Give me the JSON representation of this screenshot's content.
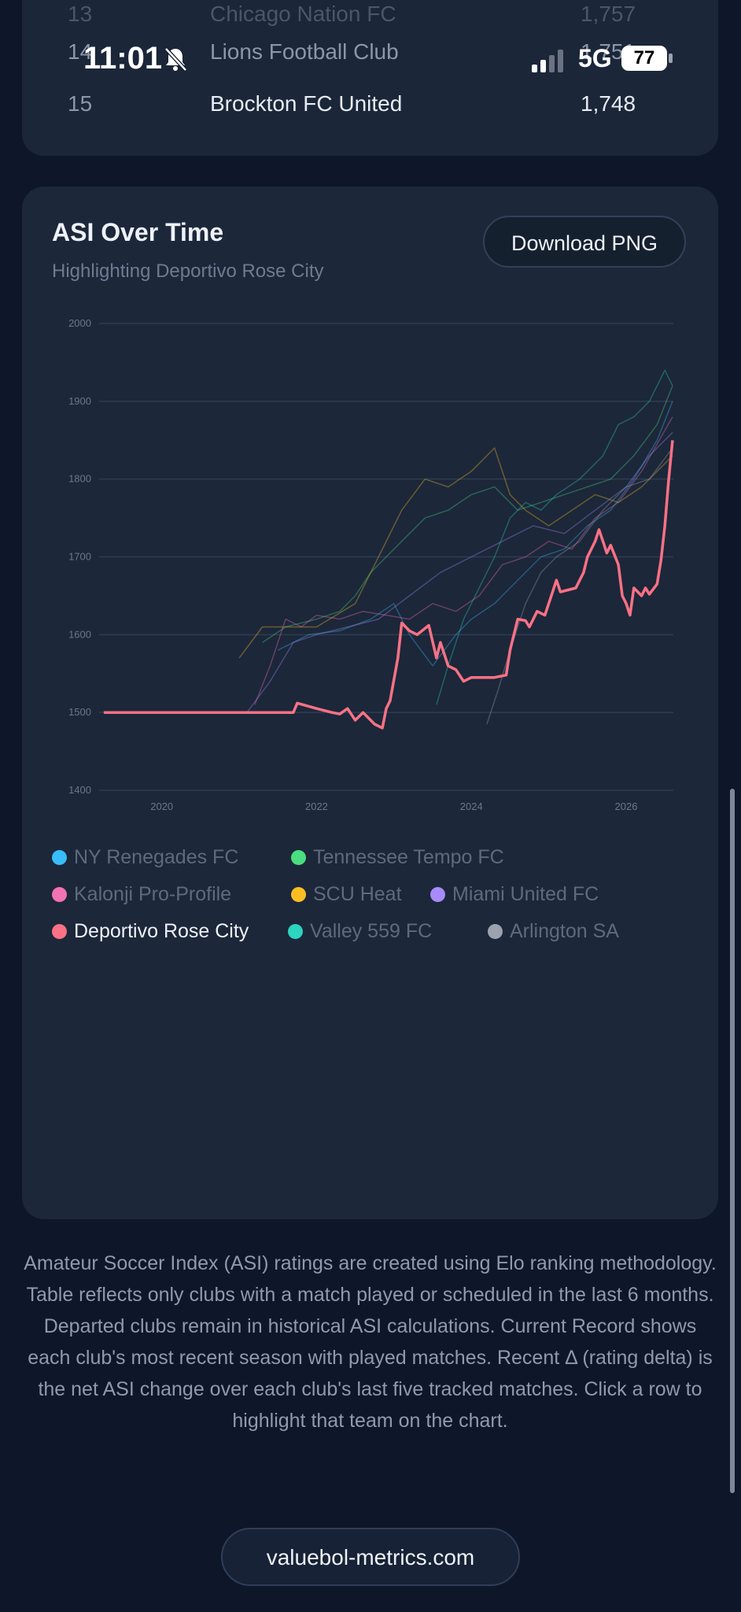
{
  "table": {
    "rows": [
      {
        "rank": "13",
        "club": "Chicago Nation FC",
        "asi": "1,757"
      },
      {
        "rank": "14",
        "club": "Lions Football Club",
        "asi": "1,751"
      },
      {
        "rank": "15",
        "club": "Brockton FC United",
        "asi": "1,748"
      }
    ]
  },
  "status_bar": {
    "time": "11:01",
    "network": "5G",
    "battery": "77"
  },
  "chart_card": {
    "title": "ASI Over Time",
    "subtitle": "Highlighting Deportivo Rose City",
    "download_label": "Download PNG"
  },
  "legend": [
    {
      "name": "NY Renegades FC",
      "color": "#38bdf8"
    },
    {
      "name": "Tennessee Tempo FC",
      "color": "#4ade80"
    },
    {
      "name": "Kalonji Pro-Profile",
      "color": "#f472b6"
    },
    {
      "name": "SCU Heat",
      "color": "#fbbf24"
    },
    {
      "name": "Miami United FC",
      "color": "#a78bfa"
    },
    {
      "name": "Deportivo Rose City",
      "color": "#fb7185"
    },
    {
      "name": "Valley 559 FC",
      "color": "#2dd4bf"
    },
    {
      "name": "Arlington SA",
      "color": "#9ca3af"
    }
  ],
  "chart_data": {
    "type": "line",
    "title": "ASI Over Time",
    "subtitle": "Highlighting Deportivo Rose City",
    "xlabel": "",
    "ylabel": "",
    "x_ticks": [
      "2020",
      "2022",
      "2024",
      "2026"
    ],
    "y_ticks": [
      1400,
      1500,
      1600,
      1700,
      1800,
      1900,
      2000
    ],
    "xlim": [
      2019.2,
      2026.6
    ],
    "ylim": [
      1400,
      2000
    ],
    "grid": true,
    "highlight": "Deportivo Rose City",
    "series": [
      {
        "name": "Deportivo Rose City",
        "color": "#fb7185",
        "highlighted": true,
        "points": [
          [
            2019.25,
            1500
          ],
          [
            2021.2,
            1500
          ],
          [
            2021.7,
            1500
          ],
          [
            2021.75,
            1512
          ],
          [
            2022.0,
            1505
          ],
          [
            2022.2,
            1500
          ],
          [
            2022.3,
            1498
          ],
          [
            2022.4,
            1505
          ],
          [
            2022.5,
            1490
          ],
          [
            2022.6,
            1500
          ],
          [
            2022.75,
            1485
          ],
          [
            2022.85,
            1480
          ],
          [
            2022.9,
            1505
          ],
          [
            2022.95,
            1515
          ],
          [
            2023.05,
            1570
          ],
          [
            2023.1,
            1615
          ],
          [
            2023.2,
            1605
          ],
          [
            2023.3,
            1600
          ],
          [
            2023.45,
            1612
          ],
          [
            2023.55,
            1570
          ],
          [
            2023.6,
            1590
          ],
          [
            2023.7,
            1560
          ],
          [
            2023.8,
            1555
          ],
          [
            2023.9,
            1540
          ],
          [
            2024.0,
            1545
          ],
          [
            2024.3,
            1545
          ],
          [
            2024.45,
            1548
          ],
          [
            2024.5,
            1580
          ],
          [
            2024.6,
            1620
          ],
          [
            2024.7,
            1618
          ],
          [
            2024.75,
            1610
          ],
          [
            2024.85,
            1630
          ],
          [
            2024.95,
            1625
          ],
          [
            2025.05,
            1655
          ],
          [
            2025.1,
            1670
          ],
          [
            2025.15,
            1655
          ],
          [
            2025.35,
            1660
          ],
          [
            2025.45,
            1680
          ],
          [
            2025.5,
            1700
          ],
          [
            2025.6,
            1720
          ],
          [
            2025.65,
            1735
          ],
          [
            2025.7,
            1720
          ],
          [
            2025.75,
            1705
          ],
          [
            2025.8,
            1715
          ],
          [
            2025.9,
            1690
          ],
          [
            2025.95,
            1650
          ],
          [
            2026.0,
            1640
          ],
          [
            2026.05,
            1625
          ],
          [
            2026.1,
            1660
          ],
          [
            2026.2,
            1650
          ],
          [
            2026.25,
            1660
          ],
          [
            2026.3,
            1652
          ],
          [
            2026.4,
            1665
          ],
          [
            2026.45,
            1695
          ],
          [
            2026.5,
            1740
          ],
          [
            2026.55,
            1800
          ],
          [
            2026.6,
            1850
          ]
        ]
      },
      {
        "name": "NY Renegades FC",
        "color": "#38bdf8",
        "points": [
          [
            2021.5,
            1580
          ],
          [
            2021.9,
            1600
          ],
          [
            2022.3,
            1605
          ],
          [
            2022.7,
            1620
          ],
          [
            2023.0,
            1640
          ],
          [
            2023.2,
            1600
          ],
          [
            2023.5,
            1560
          ],
          [
            2023.8,
            1600
          ],
          [
            2024.0,
            1620
          ],
          [
            2024.3,
            1640
          ],
          [
            2024.6,
            1670
          ],
          [
            2024.9,
            1700
          ],
          [
            2025.2,
            1710
          ],
          [
            2025.5,
            1740
          ],
          [
            2025.8,
            1760
          ],
          [
            2026.1,
            1800
          ],
          [
            2026.4,
            1850
          ],
          [
            2026.6,
            1900
          ]
        ]
      },
      {
        "name": "Tennessee Tempo FC",
        "color": "#4ade80",
        "points": [
          [
            2021.3,
            1590
          ],
          [
            2021.6,
            1610
          ],
          [
            2022.0,
            1620
          ],
          [
            2022.3,
            1630
          ],
          [
            2022.5,
            1650
          ],
          [
            2022.7,
            1680
          ],
          [
            2022.9,
            1700
          ],
          [
            2023.1,
            1720
          ],
          [
            2023.4,
            1750
          ],
          [
            2023.7,
            1760
          ],
          [
            2024.0,
            1780
          ],
          [
            2024.3,
            1790
          ],
          [
            2024.6,
            1760
          ],
          [
            2024.9,
            1770
          ],
          [
            2025.2,
            1780
          ],
          [
            2025.5,
            1790
          ],
          [
            2025.8,
            1800
          ],
          [
            2026.1,
            1830
          ],
          [
            2026.4,
            1870
          ],
          [
            2026.6,
            1920
          ]
        ]
      },
      {
        "name": "Kalonji Pro-Profile",
        "color": "#f472b6",
        "points": [
          [
            2021.2,
            1510
          ],
          [
            2021.4,
            1560
          ],
          [
            2021.6,
            1620
          ],
          [
            2021.8,
            1610
          ],
          [
            2022.0,
            1625
          ],
          [
            2022.3,
            1620
          ],
          [
            2022.6,
            1630
          ],
          [
            2022.9,
            1625
          ],
          [
            2023.2,
            1620
          ],
          [
            2023.5,
            1640
          ],
          [
            2023.8,
            1630
          ],
          [
            2024.1,
            1650
          ],
          [
            2024.4,
            1690
          ],
          [
            2024.7,
            1700
          ],
          [
            2025.0,
            1720
          ],
          [
            2025.3,
            1710
          ],
          [
            2025.6,
            1750
          ],
          [
            2025.9,
            1770
          ],
          [
            2026.2,
            1810
          ],
          [
            2026.6,
            1880
          ]
        ]
      },
      {
        "name": "SCU Heat",
        "color": "#fbbf24",
        "points": [
          [
            2021.0,
            1570
          ],
          [
            2021.3,
            1610
          ],
          [
            2022.0,
            1610
          ],
          [
            2022.5,
            1640
          ],
          [
            2022.8,
            1700
          ],
          [
            2023.1,
            1760
          ],
          [
            2023.4,
            1800
          ],
          [
            2023.7,
            1790
          ],
          [
            2024.0,
            1810
          ],
          [
            2024.3,
            1840
          ],
          [
            2024.5,
            1780
          ],
          [
            2024.7,
            1760
          ],
          [
            2025.0,
            1740
          ],
          [
            2025.3,
            1760
          ],
          [
            2025.6,
            1780
          ],
          [
            2025.9,
            1770
          ],
          [
            2026.2,
            1790
          ],
          [
            2026.6,
            1830
          ]
        ]
      },
      {
        "name": "Miami United FC",
        "color": "#a78bfa",
        "points": [
          [
            2021.1,
            1500
          ],
          [
            2021.4,
            1540
          ],
          [
            2021.7,
            1590
          ],
          [
            2022.0,
            1600
          ],
          [
            2022.4,
            1610
          ],
          [
            2022.8,
            1620
          ],
          [
            2023.2,
            1650
          ],
          [
            2023.6,
            1680
          ],
          [
            2024.0,
            1700
          ],
          [
            2024.4,
            1720
          ],
          [
            2024.8,
            1740
          ],
          [
            2025.2,
            1730
          ],
          [
            2025.6,
            1760
          ],
          [
            2026.0,
            1790
          ],
          [
            2026.3,
            1830
          ],
          [
            2026.6,
            1860
          ]
        ]
      },
      {
        "name": "Valley 559 FC",
        "color": "#2dd4bf",
        "points": [
          [
            2023.55,
            1510
          ],
          [
            2023.7,
            1560
          ],
          [
            2023.9,
            1620
          ],
          [
            2024.1,
            1660
          ],
          [
            2024.3,
            1700
          ],
          [
            2024.5,
            1750
          ],
          [
            2024.7,
            1770
          ],
          [
            2024.9,
            1760
          ],
          [
            2025.1,
            1780
          ],
          [
            2025.4,
            1800
          ],
          [
            2025.7,
            1830
          ],
          [
            2025.9,
            1870
          ],
          [
            2026.1,
            1880
          ],
          [
            2026.3,
            1900
          ],
          [
            2026.5,
            1940
          ],
          [
            2026.6,
            1920
          ]
        ]
      },
      {
        "name": "Arlington SA",
        "color": "#9ca3af",
        "points": [
          [
            2024.2,
            1485
          ],
          [
            2024.35,
            1530
          ],
          [
            2024.5,
            1580
          ],
          [
            2024.7,
            1640
          ],
          [
            2024.9,
            1680
          ],
          [
            2025.1,
            1700
          ],
          [
            2025.4,
            1720
          ],
          [
            2025.7,
            1760
          ],
          [
            2026.0,
            1790
          ],
          [
            2026.3,
            1800
          ],
          [
            2026.6,
            1840
          ]
        ]
      }
    ]
  },
  "footnote": "Amateur Soccer Index (ASI) ratings are created using Elo ranking methodology. Table reflects only clubs with a match played or scheduled in the last 6 months. Departed clubs remain in historical ASI calculations. Current Record shows each club's most recent season with played matches. Recent Δ (rating delta) is the net ASI change over each club's last five tracked matches. Click a row to highlight that team on the chart.",
  "site_link": "valuebol-metrics.com"
}
